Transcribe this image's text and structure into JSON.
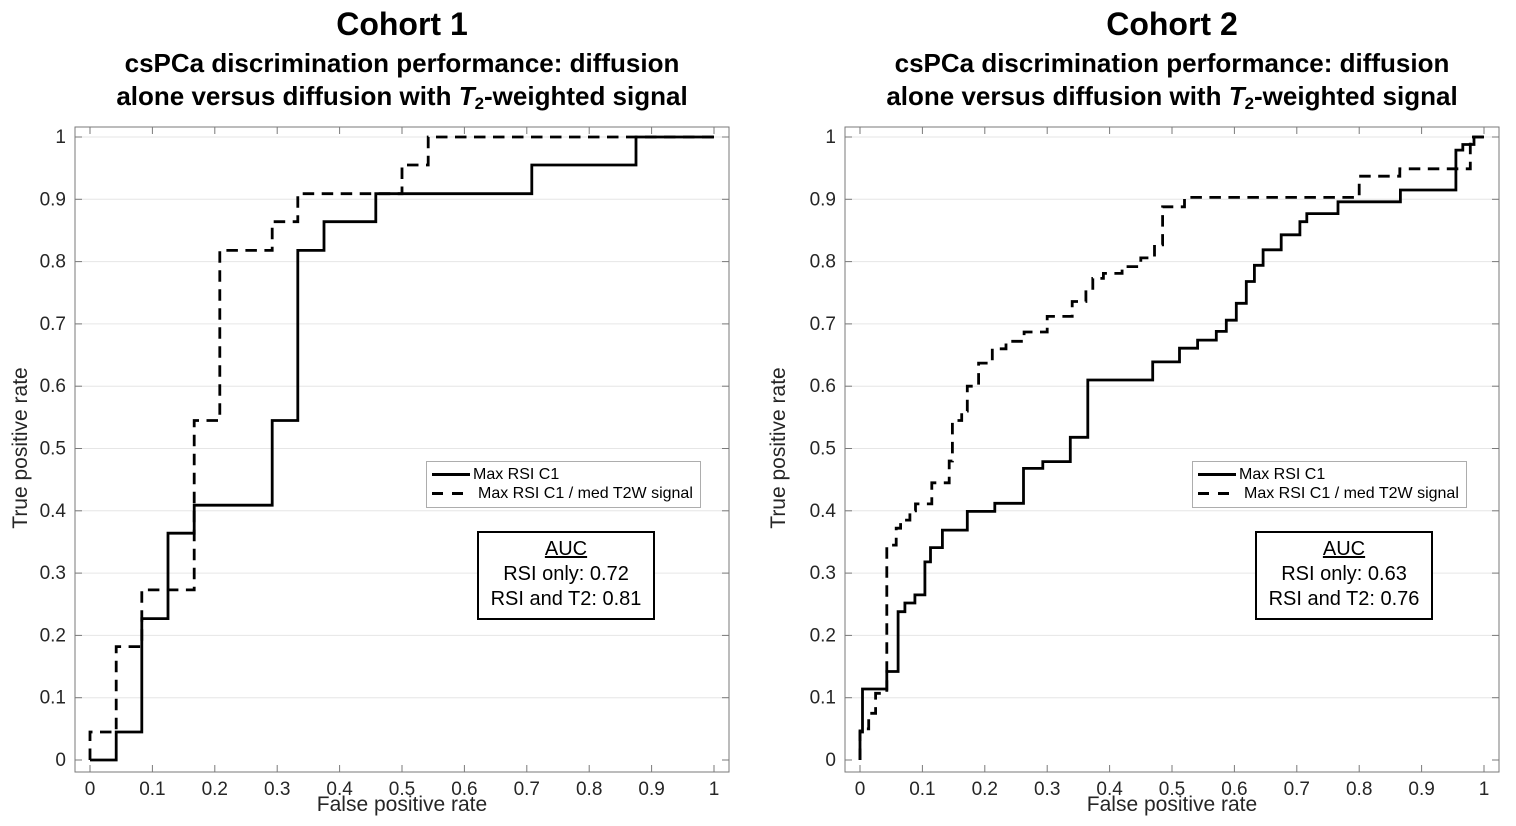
{
  "page": {
    "background_color": "#ffffff"
  },
  "chart_data": [
    {
      "type": "line",
      "subtype": "ROC step curves",
      "title": "Cohort 1",
      "subtitle": "csPCa discrimination performance: diffusion alone versus diffusion with T2-weighted signal",
      "subtitle_parts": {
        "line1": "csPCa discrimination performance: diffusion",
        "line2_pre": "alone versus diffusion with ",
        "line2_var": "T",
        "line2_varsub": "2",
        "line2_post": "-weighted signal"
      },
      "xlabel": "False positive rate",
      "ylabel": "True positive rate",
      "xlim": [
        0,
        1
      ],
      "ylim": [
        0,
        1
      ],
      "xticks": [
        "0",
        "0.1",
        "0.2",
        "0.3",
        "0.4",
        "0.5",
        "0.6",
        "0.7",
        "0.8",
        "0.9",
        "1"
      ],
      "yticks": [
        "0",
        "0.1",
        "0.2",
        "0.3",
        "0.4",
        "0.5",
        "0.6",
        "0.7",
        "0.8",
        "0.9",
        "1"
      ],
      "grid": "horizontal-only",
      "legend_position": "right-center",
      "colors": {
        "line": "#000000",
        "grid": "#e6e6e6",
        "axis": "#7a7a7a",
        "tick_labels": "#262626"
      },
      "series": [
        {
          "name": "Max RSI C1",
          "line": "solid",
          "color": "#000000",
          "points": [
            [
              0,
              0
            ],
            [
              0.042,
              0
            ],
            [
              0.042,
              0.045
            ],
            [
              0.083,
              0.045
            ],
            [
              0.083,
              0.227
            ],
            [
              0.125,
              0.227
            ],
            [
              0.125,
              0.364
            ],
            [
              0.167,
              0.364
            ],
            [
              0.167,
              0.409
            ],
            [
              0.292,
              0.409
            ],
            [
              0.292,
              0.545
            ],
            [
              0.333,
              0.545
            ],
            [
              0.333,
              0.818
            ],
            [
              0.375,
              0.818
            ],
            [
              0.375,
              0.864
            ],
            [
              0.458,
              0.864
            ],
            [
              0.458,
              0.909
            ],
            [
              0.708,
              0.909
            ],
            [
              0.708,
              0.955
            ],
            [
              0.875,
              0.955
            ],
            [
              0.875,
              1
            ],
            [
              1,
              1
            ]
          ]
        },
        {
          "name": "Max RSI C1 / med T2W signal",
          "line": "dashed",
          "color": "#000000",
          "points": [
            [
              0,
              0
            ],
            [
              0,
              0.045
            ],
            [
              0.042,
              0.045
            ],
            [
              0.042,
              0.182
            ],
            [
              0.083,
              0.182
            ],
            [
              0.083,
              0.273
            ],
            [
              0.167,
              0.273
            ],
            [
              0.167,
              0.545
            ],
            [
              0.208,
              0.545
            ],
            [
              0.208,
              0.818
            ],
            [
              0.292,
              0.818
            ],
            [
              0.292,
              0.864
            ],
            [
              0.333,
              0.864
            ],
            [
              0.333,
              0.909
            ],
            [
              0.5,
              0.909
            ],
            [
              0.5,
              0.955
            ],
            [
              0.542,
              0.955
            ],
            [
              0.542,
              1
            ],
            [
              1,
              1
            ]
          ]
        }
      ],
      "annotations": {
        "auc_title": "AUC",
        "auc_lines": [
          "RSI only: 0.72",
          "RSI and T2: 0.81"
        ]
      }
    },
    {
      "type": "line",
      "subtype": "ROC step curves",
      "title": "Cohort 2",
      "subtitle": "csPCa discrimination performance: diffusion alone versus diffusion with T2-weighted signal",
      "subtitle_parts": {
        "line1": "csPCa discrimination performance: diffusion",
        "line2_pre": "alone versus diffusion with ",
        "line2_var": "T",
        "line2_varsub": "2",
        "line2_post": "-weighted signal"
      },
      "xlabel": "False positive rate",
      "ylabel": "True positive rate",
      "xlim": [
        0,
        1
      ],
      "ylim": [
        0,
        1
      ],
      "xticks": [
        "0",
        "0.1",
        "0.2",
        "0.3",
        "0.4",
        "0.5",
        "0.6",
        "0.7",
        "0.8",
        "0.9",
        "1"
      ],
      "yticks": [
        "0",
        "0.1",
        "0.2",
        "0.3",
        "0.4",
        "0.5",
        "0.6",
        "0.7",
        "0.8",
        "0.9",
        "1"
      ],
      "grid": "horizontal-only",
      "legend_position": "right-center",
      "colors": {
        "line": "#000000",
        "grid": "#e6e6e6",
        "axis": "#7a7a7a",
        "tick_labels": "#262626"
      },
      "series": [
        {
          "name": "Max RSI C1",
          "line": "solid",
          "color": "#000000",
          "points": [
            [
              0,
              0
            ],
            [
              0,
              0.045
            ],
            [
              0.004,
              0.045
            ],
            [
              0.004,
              0.114
            ],
            [
              0.043,
              0.114
            ],
            [
              0.043,
              0.142
            ],
            [
              0.061,
              0.142
            ],
            [
              0.061,
              0.238
            ],
            [
              0.072,
              0.238
            ],
            [
              0.072,
              0.252
            ],
            [
              0.088,
              0.252
            ],
            [
              0.088,
              0.265
            ],
            [
              0.104,
              0.265
            ],
            [
              0.104,
              0.318
            ],
            [
              0.113,
              0.318
            ],
            [
              0.113,
              0.341
            ],
            [
              0.132,
              0.341
            ],
            [
              0.132,
              0.369
            ],
            [
              0.172,
              0.369
            ],
            [
              0.172,
              0.399
            ],
            [
              0.216,
              0.399
            ],
            [
              0.216,
              0.412
            ],
            [
              0.262,
              0.412
            ],
            [
              0.262,
              0.468
            ],
            [
              0.293,
              0.468
            ],
            [
              0.293,
              0.479
            ],
            [
              0.337,
              0.479
            ],
            [
              0.337,
              0.518
            ],
            [
              0.365,
              0.518
            ],
            [
              0.365,
              0.61
            ],
            [
              0.469,
              0.61
            ],
            [
              0.469,
              0.639
            ],
            [
              0.512,
              0.639
            ],
            [
              0.512,
              0.661
            ],
            [
              0.541,
              0.661
            ],
            [
              0.541,
              0.674
            ],
            [
              0.571,
              0.674
            ],
            [
              0.571,
              0.688
            ],
            [
              0.587,
              0.688
            ],
            [
              0.587,
              0.706
            ],
            [
              0.603,
              0.706
            ],
            [
              0.603,
              0.733
            ],
            [
              0.619,
              0.733
            ],
            [
              0.619,
              0.768
            ],
            [
              0.632,
              0.768
            ],
            [
              0.632,
              0.794
            ],
            [
              0.646,
              0.794
            ],
            [
              0.646,
              0.819
            ],
            [
              0.675,
              0.819
            ],
            [
              0.675,
              0.843
            ],
            [
              0.705,
              0.843
            ],
            [
              0.705,
              0.864
            ],
            [
              0.716,
              0.864
            ],
            [
              0.716,
              0.877
            ],
            [
              0.766,
              0.877
            ],
            [
              0.766,
              0.896
            ],
            [
              0.866,
              0.896
            ],
            [
              0.866,
              0.915
            ],
            [
              0.955,
              0.915
            ],
            [
              0.955,
              0.979
            ],
            [
              0.966,
              0.979
            ],
            [
              0.966,
              0.988
            ],
            [
              0.984,
              0.988
            ],
            [
              0.984,
              1
            ],
            [
              1,
              1
            ]
          ]
        },
        {
          "name": "Max RSI C1 / med T2W signal",
          "line": "dashed",
          "color": "#000000",
          "points": [
            [
              0,
              0
            ],
            [
              0,
              0.05
            ],
            [
              0.014,
              0.05
            ],
            [
              0.014,
              0.075
            ],
            [
              0.025,
              0.075
            ],
            [
              0.025,
              0.107
            ],
            [
              0.043,
              0.107
            ],
            [
              0.043,
              0.345
            ],
            [
              0.058,
              0.345
            ],
            [
              0.058,
              0.372
            ],
            [
              0.065,
              0.372
            ],
            [
              0.065,
              0.385
            ],
            [
              0.08,
              0.385
            ],
            [
              0.08,
              0.4
            ],
            [
              0.089,
              0.4
            ],
            [
              0.089,
              0.411
            ],
            [
              0.115,
              0.411
            ],
            [
              0.115,
              0.445
            ],
            [
              0.143,
              0.445
            ],
            [
              0.143,
              0.48
            ],
            [
              0.148,
              0.48
            ],
            [
              0.148,
              0.545
            ],
            [
              0.163,
              0.545
            ],
            [
              0.163,
              0.56
            ],
            [
              0.172,
              0.56
            ],
            [
              0.172,
              0.6
            ],
            [
              0.19,
              0.6
            ],
            [
              0.19,
              0.637
            ],
            [
              0.212,
              0.637
            ],
            [
              0.212,
              0.66
            ],
            [
              0.234,
              0.66
            ],
            [
              0.234,
              0.672
            ],
            [
              0.263,
              0.672
            ],
            [
              0.263,
              0.687
            ],
            [
              0.3,
              0.687
            ],
            [
              0.3,
              0.712
            ],
            [
              0.34,
              0.712
            ],
            [
              0.34,
              0.736
            ],
            [
              0.362,
              0.736
            ],
            [
              0.362,
              0.754
            ],
            [
              0.373,
              0.754
            ],
            [
              0.373,
              0.773
            ],
            [
              0.39,
              0.773
            ],
            [
              0.39,
              0.781
            ],
            [
              0.42,
              0.781
            ],
            [
              0.42,
              0.792
            ],
            [
              0.45,
              0.792
            ],
            [
              0.45,
              0.806
            ],
            [
              0.472,
              0.806
            ],
            [
              0.472,
              0.827
            ],
            [
              0.485,
              0.827
            ],
            [
              0.485,
              0.888
            ],
            [
              0.52,
              0.888
            ],
            [
              0.52,
              0.903
            ],
            [
              0.8,
              0.903
            ],
            [
              0.8,
              0.937
            ],
            [
              0.865,
              0.937
            ],
            [
              0.865,
              0.949
            ],
            [
              0.978,
              0.949
            ],
            [
              0.978,
              1
            ],
            [
              1,
              1
            ]
          ]
        }
      ],
      "annotations": {
        "auc_title": "AUC",
        "auc_lines": [
          "RSI only: 0.63",
          "RSI and T2: 0.76"
        ]
      }
    }
  ]
}
